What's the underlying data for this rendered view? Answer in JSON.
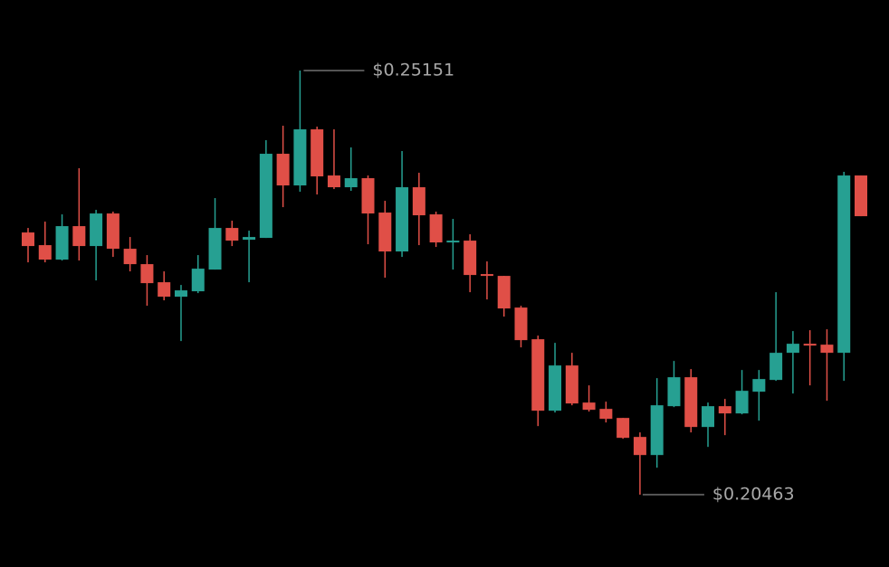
{
  "chart_data": {
    "type": "candlestick",
    "up_color": "#26a092",
    "down_color": "#e04f47",
    "max_label": "$0.25151",
    "min_label": "$0.20463",
    "open": [
      0.23361,
      0.23221,
      0.23061,
      0.23431,
      0.23211,
      0.23571,
      0.23181,
      0.23011,
      0.22811,
      0.22651,
      0.22711,
      0.22951,
      0.23411,
      0.23281,
      0.23301,
      0.24231,
      0.23881,
      0.24501,
      0.23991,
      0.23861,
      0.23961,
      0.23581,
      0.23151,
      0.23861,
      0.23561,
      0.23251,
      0.23271,
      0.22901,
      0.22881,
      0.22531,
      0.22181,
      0.21391,
      0.21891,
      0.21481,
      0.21411,
      0.21311,
      0.21101,
      0.20901,
      0.21441,
      0.21761,
      0.21211,
      0.21441,
      0.21361,
      0.21601,
      0.21731,
      0.22031,
      0.22131,
      0.22121,
      0.22031,
      0.23991
    ],
    "high": [
      0.23411,
      0.23481,
      0.23561,
      0.24071,
      0.23611,
      0.23591,
      0.23311,
      0.23111,
      0.22931,
      0.22781,
      0.23111,
      0.23741,
      0.23491,
      0.23381,
      0.24381,
      0.24541,
      0.25151,
      0.24531,
      0.24501,
      0.24301,
      0.23991,
      0.23711,
      0.24261,
      0.24021,
      0.23591,
      0.23511,
      0.23341,
      0.23041,
      0.22881,
      0.22551,
      0.22221,
      0.22141,
      0.22031,
      0.21671,
      0.21491,
      0.21311,
      0.21151,
      0.21751,
      0.21941,
      0.21851,
      0.21481,
      0.21521,
      0.21841,
      0.21841,
      0.22701,
      0.22271,
      0.22281,
      0.22291,
      0.24031,
      0.23991
    ],
    "low": [
      0.23031,
      0.23031,
      0.23051,
      0.23051,
      0.22831,
      0.23091,
      0.22931,
      0.22551,
      0.22611,
      0.22161,
      0.22691,
      0.22951,
      0.23211,
      0.22811,
      0.23301,
      0.23641,
      0.23811,
      0.23781,
      0.23841,
      0.23821,
      0.23231,
      0.22861,
      0.23091,
      0.23221,
      0.23201,
      0.22951,
      0.22701,
      0.22621,
      0.22431,
      0.22091,
      0.21221,
      0.21371,
      0.21451,
      0.21381,
      0.21261,
      0.21081,
      0.20463,
      0.20761,
      0.21431,
      0.21151,
      0.20991,
      0.21121,
      0.21351,
      0.21281,
      0.21721,
      0.21581,
      0.21671,
      0.21501,
      0.21721,
      0.23541
    ],
    "close": [
      0.23211,
      0.23061,
      0.23431,
      0.23211,
      0.23571,
      0.23181,
      0.23011,
      0.22801,
      0.22651,
      0.22721,
      0.22961,
      0.23411,
      0.23271,
      0.23311,
      0.24231,
      0.23881,
      0.24501,
      0.23981,
      0.23861,
      0.23961,
      0.23571,
      0.23151,
      0.23861,
      0.23551,
      0.23251,
      0.23271,
      0.22891,
      0.22881,
      0.22521,
      0.22171,
      0.21391,
      0.21891,
      0.21471,
      0.21401,
      0.21301,
      0.21091,
      0.20901,
      0.21451,
      0.21761,
      0.21211,
      0.21441,
      0.21361,
      0.21611,
      0.21741,
      0.22031,
      0.22131,
      0.22111,
      0.22031,
      0.23991,
      0.23541
    ]
  }
}
